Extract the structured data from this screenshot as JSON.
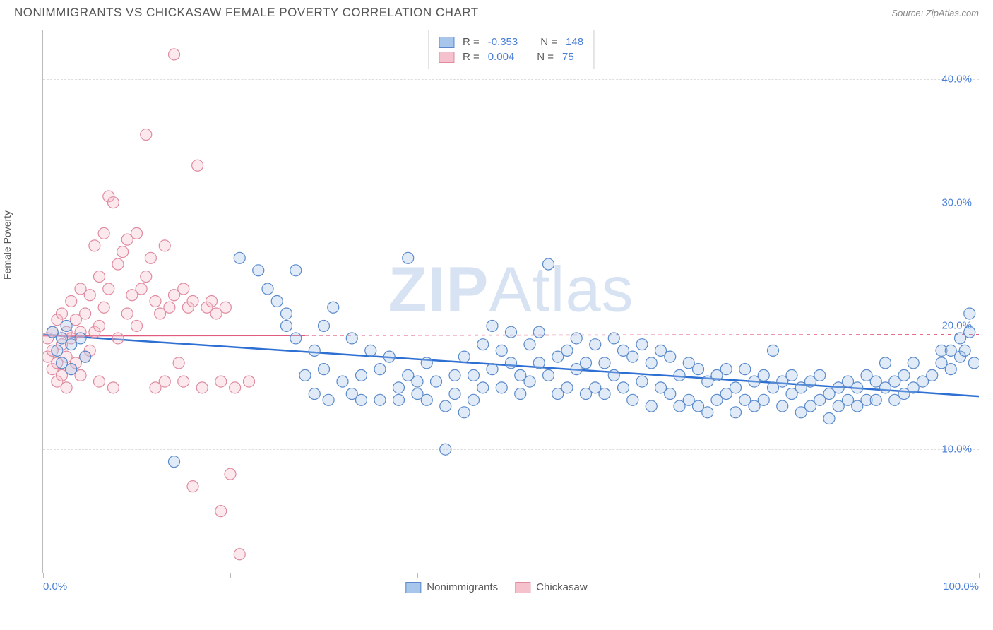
{
  "title": "NONIMMIGRANTS VS CHICKASAW FEMALE POVERTY CORRELATION CHART",
  "source_label": "Source: ZipAtlas.com",
  "y_axis_label": "Female Poverty",
  "watermark": {
    "bold": "ZIP",
    "light": "Atlas"
  },
  "chart": {
    "type": "scatter",
    "xlim": [
      0,
      100
    ],
    "ylim": [
      0,
      44
    ],
    "y_ticks": [
      10,
      20,
      30,
      40
    ],
    "y_tick_labels": [
      "10.0%",
      "20.0%",
      "30.0%",
      "40.0%"
    ],
    "x_ticks": [
      0,
      20,
      40,
      60,
      80,
      100
    ],
    "x_tick_labels_visible": {
      "0": "0.0%",
      "100": "100.0%"
    },
    "grid_color": "#dddddd",
    "axis_color": "#bbbbbb",
    "background_color": "#ffffff",
    "marker_radius": 8,
    "marker_stroke_width": 1.2,
    "marker_fill_opacity": 0.35,
    "series": [
      {
        "name": "Nonimmigrants",
        "color_fill": "#a8c5ec",
        "color_stroke": "#5a8acb",
        "R": "-0.353",
        "N": "148",
        "trend": {
          "x1": 0,
          "y1": 19.3,
          "x2": 100,
          "y2": 14.3,
          "solid_until_x": 100,
          "color": "#2d6fd2",
          "width": 2.5
        },
        "points": [
          [
            1,
            19.5
          ],
          [
            1.5,
            18
          ],
          [
            2,
            19
          ],
          [
            2,
            17
          ],
          [
            2.5,
            20
          ],
          [
            3,
            18.5
          ],
          [
            3,
            16.5
          ],
          [
            4,
            19
          ],
          [
            4.5,
            17.5
          ],
          [
            14,
            9
          ],
          [
            21,
            25.5
          ],
          [
            23,
            24.5
          ],
          [
            24,
            23
          ],
          [
            25,
            22
          ],
          [
            26,
            21
          ],
          [
            26,
            20
          ],
          [
            27,
            24.5
          ],
          [
            27,
            19
          ],
          [
            28,
            16
          ],
          [
            29,
            14.5
          ],
          [
            29,
            18
          ],
          [
            30,
            20
          ],
          [
            30,
            16.5
          ],
          [
            30.5,
            14
          ],
          [
            31,
            21.5
          ],
          [
            32,
            15.5
          ],
          [
            33,
            19
          ],
          [
            33,
            14.5
          ],
          [
            34,
            16
          ],
          [
            34,
            14
          ],
          [
            35,
            18
          ],
          [
            36,
            16.5
          ],
          [
            36,
            14
          ],
          [
            37,
            17.5
          ],
          [
            38,
            15
          ],
          [
            38,
            14
          ],
          [
            39,
            25.5
          ],
          [
            39,
            16
          ],
          [
            40,
            15.5
          ],
          [
            40,
            14.5
          ],
          [
            41,
            17
          ],
          [
            41,
            14
          ],
          [
            42,
            15.5
          ],
          [
            43,
            13.5
          ],
          [
            43,
            10
          ],
          [
            44,
            16
          ],
          [
            44,
            14.5
          ],
          [
            45,
            17.5
          ],
          [
            45,
            13
          ],
          [
            46,
            16
          ],
          [
            46,
            14
          ],
          [
            47,
            18.5
          ],
          [
            47,
            15
          ],
          [
            48,
            20
          ],
          [
            48,
            16.5
          ],
          [
            49,
            18
          ],
          [
            49,
            15
          ],
          [
            50,
            19.5
          ],
          [
            50,
            17
          ],
          [
            51,
            16
          ],
          [
            51,
            14.5
          ],
          [
            52,
            18.5
          ],
          [
            52,
            15.5
          ],
          [
            53,
            17
          ],
          [
            53,
            19.5
          ],
          [
            54,
            25
          ],
          [
            54,
            16
          ],
          [
            55,
            17.5
          ],
          [
            55,
            14.5
          ],
          [
            56,
            18
          ],
          [
            56,
            15
          ],
          [
            57,
            19
          ],
          [
            57,
            16.5
          ],
          [
            58,
            17
          ],
          [
            58,
            14.5
          ],
          [
            59,
            18.5
          ],
          [
            59,
            15
          ],
          [
            60,
            17
          ],
          [
            60,
            14.5
          ],
          [
            61,
            19
          ],
          [
            61,
            16
          ],
          [
            62,
            18
          ],
          [
            62,
            15
          ],
          [
            63,
            17.5
          ],
          [
            63,
            14
          ],
          [
            64,
            18.5
          ],
          [
            64,
            15.5
          ],
          [
            65,
            17
          ],
          [
            65,
            13.5
          ],
          [
            66,
            18
          ],
          [
            66,
            15
          ],
          [
            67,
            17.5
          ],
          [
            67,
            14.5
          ],
          [
            68,
            16
          ],
          [
            68,
            13.5
          ],
          [
            69,
            17
          ],
          [
            69,
            14
          ],
          [
            70,
            16.5
          ],
          [
            70,
            13.5
          ],
          [
            71,
            15.5
          ],
          [
            71,
            13
          ],
          [
            72,
            16
          ],
          [
            72,
            14
          ],
          [
            73,
            16.5
          ],
          [
            73,
            14.5
          ],
          [
            74,
            15
          ],
          [
            74,
            13
          ],
          [
            75,
            16.5
          ],
          [
            75,
            14
          ],
          [
            76,
            15.5
          ],
          [
            76,
            13.5
          ],
          [
            77,
            16
          ],
          [
            77,
            14
          ],
          [
            78,
            18
          ],
          [
            78,
            15
          ],
          [
            79,
            15.5
          ],
          [
            79,
            13.5
          ],
          [
            80,
            16
          ],
          [
            80,
            14.5
          ],
          [
            81,
            15
          ],
          [
            81,
            13
          ],
          [
            82,
            15.5
          ],
          [
            82,
            13.5
          ],
          [
            83,
            16
          ],
          [
            83,
            14
          ],
          [
            84,
            14.5
          ],
          [
            84,
            12.5
          ],
          [
            85,
            15
          ],
          [
            85,
            13.5
          ],
          [
            86,
            15.5
          ],
          [
            86,
            14
          ],
          [
            87,
            15
          ],
          [
            87,
            13.5
          ],
          [
            88,
            16
          ],
          [
            88,
            14
          ],
          [
            89,
            15.5
          ],
          [
            89,
            14
          ],
          [
            90,
            17
          ],
          [
            90,
            15
          ],
          [
            91,
            15.5
          ],
          [
            91,
            14
          ],
          [
            92,
            16
          ],
          [
            92,
            14.5
          ],
          [
            93,
            15
          ],
          [
            93,
            17
          ],
          [
            94,
            15.5
          ],
          [
            95,
            16
          ],
          [
            96,
            17
          ],
          [
            96,
            18
          ],
          [
            97,
            16.5
          ],
          [
            97,
            18
          ],
          [
            98,
            17.5
          ],
          [
            98,
            19
          ],
          [
            98.5,
            18
          ],
          [
            99,
            19.5
          ],
          [
            99,
            21
          ],
          [
            99.5,
            17
          ]
        ]
      },
      {
        "name": "Chickasaw",
        "color_fill": "#f5c1cc",
        "color_stroke": "#e08ba0",
        "R": "0.004",
        "N": "75",
        "trend": {
          "x1": 0,
          "y1": 19.2,
          "x2": 100,
          "y2": 19.3,
          "solid_until_x": 28,
          "color": "#e05a7e",
          "width": 2
        },
        "points": [
          [
            0.5,
            19
          ],
          [
            0.5,
            17.5
          ],
          [
            1,
            19.5
          ],
          [
            1,
            18
          ],
          [
            1,
            16.5
          ],
          [
            1.5,
            20.5
          ],
          [
            1.5,
            17
          ],
          [
            1.5,
            15.5
          ],
          [
            2,
            21
          ],
          [
            2,
            18.5
          ],
          [
            2,
            16
          ],
          [
            2.5,
            19.5
          ],
          [
            2.5,
            17.5
          ],
          [
            2.5,
            15
          ],
          [
            3,
            22
          ],
          [
            3,
            19
          ],
          [
            3,
            16.5
          ],
          [
            3.5,
            20.5
          ],
          [
            3.5,
            17
          ],
          [
            4,
            23
          ],
          [
            4,
            19.5
          ],
          [
            4,
            16
          ],
          [
            4.5,
            21
          ],
          [
            4.5,
            17.5
          ],
          [
            5,
            22.5
          ],
          [
            5,
            18
          ],
          [
            5.5,
            26.5
          ],
          [
            5.5,
            19.5
          ],
          [
            6,
            24
          ],
          [
            6,
            20
          ],
          [
            6,
            15.5
          ],
          [
            6.5,
            27.5
          ],
          [
            6.5,
            21.5
          ],
          [
            7,
            30.5
          ],
          [
            7,
            23
          ],
          [
            7.5,
            30
          ],
          [
            7.5,
            15
          ],
          [
            8,
            25
          ],
          [
            8,
            19
          ],
          [
            8.5,
            26
          ],
          [
            9,
            27
          ],
          [
            9,
            21
          ],
          [
            9.5,
            22.5
          ],
          [
            10,
            27.5
          ],
          [
            10,
            20
          ],
          [
            10.5,
            23
          ],
          [
            11,
            35.5
          ],
          [
            11,
            24
          ],
          [
            11.5,
            25.5
          ],
          [
            12,
            22
          ],
          [
            12,
            15
          ],
          [
            12.5,
            21
          ],
          [
            13,
            26.5
          ],
          [
            13,
            15.5
          ],
          [
            13.5,
            21.5
          ],
          [
            14,
            42
          ],
          [
            14,
            22.5
          ],
          [
            14.5,
            17
          ],
          [
            15,
            23
          ],
          [
            15,
            15.5
          ],
          [
            15.5,
            21.5
          ],
          [
            16,
            22
          ],
          [
            16.5,
            33
          ],
          [
            17,
            15
          ],
          [
            17.5,
            21.5
          ],
          [
            18,
            22
          ],
          [
            18.5,
            21
          ],
          [
            19,
            15.5
          ],
          [
            19,
            5
          ],
          [
            19.5,
            21.5
          ],
          [
            20,
            8
          ],
          [
            20.5,
            15
          ],
          [
            21,
            1.5
          ],
          [
            22,
            15.5
          ],
          [
            16,
            7
          ]
        ]
      }
    ]
  },
  "legend_top": [
    {
      "swatch_fill": "#a8c5ec",
      "swatch_stroke": "#5a8acb",
      "r_label": "R =",
      "r_value": "-0.353",
      "n_label": "N =",
      "n_value": "148"
    },
    {
      "swatch_fill": "#f5c1cc",
      "swatch_stroke": "#e08ba0",
      "r_label": "R =",
      "r_value": "0.004",
      "n_label": "N =",
      "n_value": "75"
    }
  ],
  "legend_bottom": [
    {
      "swatch_fill": "#a8c5ec",
      "swatch_stroke": "#5a8acb",
      "label": "Nonimmigrants"
    },
    {
      "swatch_fill": "#f5c1cc",
      "swatch_stroke": "#e08ba0",
      "label": "Chickasaw"
    }
  ]
}
